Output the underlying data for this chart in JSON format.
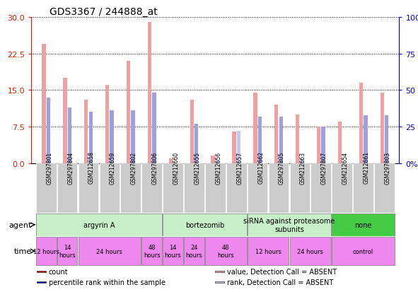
{
  "title": "GDS3367 / 244888_at",
  "samples": [
    "GSM297801",
    "GSM297804",
    "GSM212658",
    "GSM212659",
    "GSM297802",
    "GSM297806",
    "GSM212660",
    "GSM212655",
    "GSM212656",
    "GSM212657",
    "GSM212662",
    "GSM297805",
    "GSM212663",
    "GSM297807",
    "GSM212654",
    "GSM212661",
    "GSM297803"
  ],
  "count_values": [
    24.5,
    17.5,
    13.0,
    16.0,
    21.0,
    29.0,
    1.0,
    13.0,
    1.5,
    6.5,
    14.5,
    12.0,
    10.0,
    7.5,
    8.5,
    16.5,
    14.5
  ],
  "rank_values": [
    45.0,
    38.0,
    35.0,
    36.0,
    36.0,
    48.0,
    0.0,
    27.0,
    3.0,
    22.0,
    32.0,
    32.0,
    3.0,
    25.0,
    0.0,
    33.0,
    33.0
  ],
  "count_absent": [
    false,
    false,
    false,
    false,
    false,
    false,
    true,
    false,
    true,
    true,
    false,
    false,
    false,
    false,
    false,
    false,
    false
  ],
  "rank_absent": [
    false,
    false,
    false,
    false,
    false,
    false,
    true,
    false,
    true,
    true,
    false,
    false,
    true,
    false,
    true,
    false,
    false
  ],
  "ylim_left": [
    0,
    30
  ],
  "ylim_right": [
    0,
    100
  ],
  "yticks_left": [
    0,
    7.5,
    15.0,
    22.5,
    30
  ],
  "yticks_right": [
    0,
    25,
    50,
    75,
    100
  ],
  "color_count_present": "#f0a0a0",
  "color_count_absent": "#f0a0a0",
  "color_rank_present": "#a0a0e0",
  "color_rank_absent": "#c8c8f0",
  "legend_count_color": "#cc0000",
  "legend_rank_color": "#0000cc",
  "legend_count_absent_color": "#f0a0a0",
  "legend_rank_absent_color": "#c8c8f0",
  "agent_groups": [
    {
      "label": "argyrin A",
      "start": 0,
      "end": 6,
      "color": "#c8f0c8"
    },
    {
      "label": "bortezomib",
      "start": 6,
      "end": 10,
      "color": "#c8f0c8"
    },
    {
      "label": "siRNA against proteasome\nsubunits",
      "start": 10,
      "end": 14,
      "color": "#c8f0c8"
    },
    {
      "label": "none",
      "start": 14,
      "end": 17,
      "color": "#44cc44"
    }
  ],
  "time_groups": [
    {
      "label": "12 hours",
      "start": 0,
      "end": 1
    },
    {
      "label": "14\nhours",
      "start": 1,
      "end": 2
    },
    {
      "label": "24 hours",
      "start": 2,
      "end": 5
    },
    {
      "label": "48\nhours",
      "start": 5,
      "end": 6
    },
    {
      "label": "14\nhours",
      "start": 6,
      "end": 7
    },
    {
      "label": "24\nhours",
      "start": 7,
      "end": 8
    },
    {
      "label": "48\nhours",
      "start": 8,
      "end": 10
    },
    {
      "label": "12 hours",
      "start": 10,
      "end": 12
    },
    {
      "label": "24 hours",
      "start": 12,
      "end": 14
    },
    {
      "label": "control",
      "start": 14,
      "end": 17
    }
  ],
  "bg_color": "#ffffff",
  "axis_left_color": "#cc2200",
  "axis_right_color": "#0000cc",
  "bar_width": 0.18
}
